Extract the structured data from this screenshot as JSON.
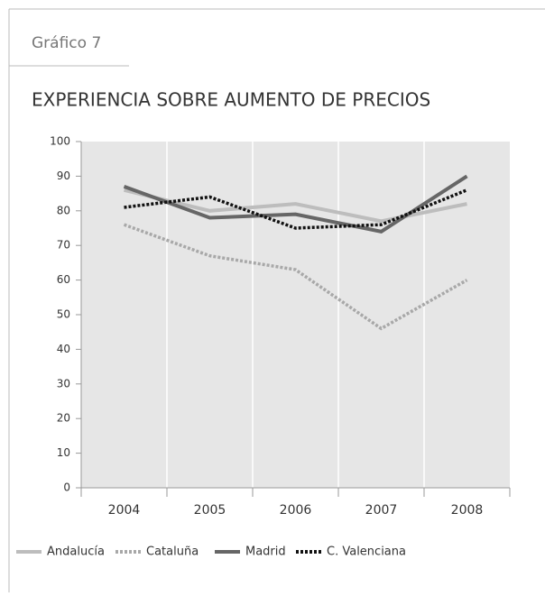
{
  "header": {
    "label": "Gráfico 7"
  },
  "chart_data": {
    "type": "line",
    "title": "EXPERIENCIA SOBRE AUMENTO DE PRECIOS",
    "categories": [
      "2004",
      "2005",
      "2006",
      "2007",
      "2008"
    ],
    "series": [
      {
        "name": "Andalucía",
        "color": "#bdbdbd",
        "dash": "solid",
        "values": [
          86,
          80,
          82,
          77,
          82
        ]
      },
      {
        "name": "Cataluña",
        "color": "#a8a8a8",
        "dash": "dotted",
        "values": [
          76,
          67,
          63,
          46,
          60
        ]
      },
      {
        "name": "Madrid",
        "color": "#666666",
        "dash": "solid",
        "values": [
          87,
          78,
          79,
          74,
          90
        ]
      },
      {
        "name": "C. Valenciana",
        "color": "#111111",
        "dash": "dotted",
        "values": [
          81,
          84,
          75,
          76,
          86
        ]
      }
    ],
    "ylim": [
      0,
      100
    ],
    "yticks": [
      0,
      10,
      20,
      30,
      40,
      50,
      60,
      70,
      80,
      90,
      100
    ],
    "grid": true
  }
}
